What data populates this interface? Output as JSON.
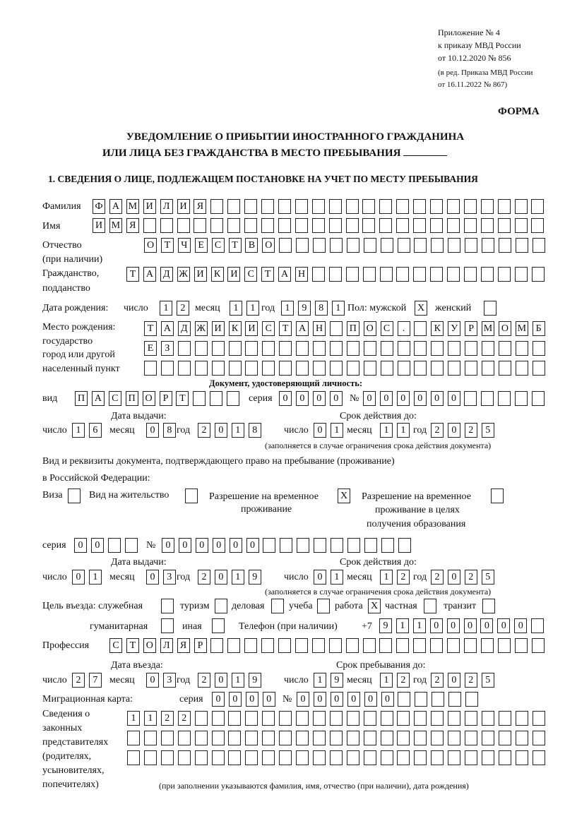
{
  "header": {
    "line1": "Приложение № 4",
    "line2": "к приказу МВД России",
    "line3": "от 10.12.2020 № 856",
    "line4": "(в ред. Приказа МВД России",
    "line5": "от 16.11.2022 № 867)",
    "forma": "ФОРМА",
    "title1": "УВЕДОМЛЕНИЕ О ПРИБЫТИИ ИНОСТРАННОГО ГРАЖДАНИНА",
    "title2": "ИЛИ ЛИЦА БЕЗ ГРАЖДАНСТВА В МЕСТО ПРЕБЫВАНИЯ"
  },
  "section1": {
    "heading": "1. СВЕДЕНИЯ О ЛИЦЕ, ПОДЛЕЖАЩЕМ ПОСТАНОВКЕ НА УЧЕТ ПО МЕСТУ ПРЕБЫВАНИЯ",
    "surname": {
      "label": "Фамилия",
      "value": "ФАМИЛИЯ"
    },
    "name": {
      "label": "Имя",
      "value": "ИМЯ"
    },
    "patronymic": {
      "label": "Отчество",
      "label2": "(при наличии)",
      "value": "ОТЧЕСТВО"
    },
    "citizenship": {
      "label": "Гражданство,",
      "label2": "подданство",
      "value": "ТАДЖИКИСТАН"
    },
    "birth_date": {
      "label": "Дата рождения:",
      "day_label": "число",
      "day": "12",
      "month_label": "месяц",
      "month": "11",
      "year_label": "год",
      "year": "1981"
    },
    "sex": {
      "label": "Пол: мужской",
      "male": "X",
      "female_label": "женский",
      "female": ""
    },
    "birth_place": {
      "label1": "Место рождения:",
      "label2": "государство",
      "label3": "город или другой",
      "label4": "населенный пункт",
      "row1": "ТАДЖИКИСТАН ПОС. КУРМОМБ",
      "row2": "ЕЗ",
      "row3": ""
    },
    "id_doc": {
      "heading": "Документ, удостоверяющий личность:",
      "type_label": "вид",
      "type": "ПАСПОРТ",
      "series_label": "серия",
      "series": "0000",
      "number_label": "№",
      "number": "000000",
      "issue_label": "Дата выдачи:",
      "valid_label": "Срок действия до:",
      "day_label": "число",
      "month_label": "месяц",
      "year_label": "год",
      "issue_day": "16",
      "issue_month": "08",
      "issue_year": "2018",
      "valid_day": "01",
      "valid_month": "11",
      "valid_year": "2025",
      "note": "(заполняется в случае ограничения срока действия документа)"
    },
    "right_doc": {
      "text1": "Вид и реквизиты документа, подтверждающего право на пребывание (проживание)",
      "text2": "в Российской Федерации:",
      "visa_label": "Виза",
      "visa": "",
      "residence_label": "Вид на жительство",
      "residence": "",
      "temp_label1": "Разрешение на временное",
      "temp_label2": "проживание",
      "temp": "X",
      "edu_label1": "Разрешение на временное",
      "edu_label2": "проживание в целях",
      "edu_label3": "получения образования",
      "edu": "",
      "series_label": "серия",
      "series": "00",
      "number_label": "№",
      "number": "000000",
      "issue_label": "Дата выдачи:",
      "valid_label": "Срок действия до:",
      "day_label": "число",
      "month_label": "месяц",
      "year_label": "год",
      "issue_day": "01",
      "issue_month": "03",
      "issue_year": "2019",
      "valid_day": "01",
      "valid_month": "12",
      "valid_year": "2025",
      "note": "(заполняется в случае ограничения срока действия документа)"
    },
    "purpose": {
      "label": "Цель въезда: служебная",
      "official": "",
      "tourism_label": "туризм",
      "tourism": "",
      "business_label": "деловая",
      "business": "",
      "study_label": "учеба",
      "study": "",
      "work_label": "работа",
      "work": "X",
      "private_label": "частная",
      "private": "",
      "transit_label": "транзит",
      "transit": "",
      "humanitarian_label": "гуманитарная",
      "humanitarian": "",
      "other_label": "иная",
      "other": ""
    },
    "phone": {
      "label": "Телефон (при наличии)",
      "prefix": "+7",
      "value": "911000000"
    },
    "profession": {
      "label": "Профессия",
      "value": "СТОЛЯР"
    },
    "entry": {
      "entry_label": "Дата въезда:",
      "stay_label": "Срок пребывания до:",
      "day_label": "число",
      "month_label": "месяц",
      "year_label": "год",
      "entry_day": "27",
      "entry_month": "03",
      "entry_year": "2019",
      "stay_day": "19",
      "stay_month": "12",
      "stay_year": "2025"
    },
    "migration_card": {
      "label": "Миграционная карта:",
      "series_label": "серия",
      "series": "0000",
      "number_label": "№",
      "number": "000000"
    },
    "representatives": {
      "label1": "Сведения о",
      "label2": "законных",
      "label3": "представителях",
      "label4": "(родителях,",
      "label5": "усыновителях,",
      "label6": "попечителях)",
      "row1": "1122",
      "row2": "",
      "row3": "",
      "note": "(при заполнении указываются фамилия, имя, отчество (при наличии), дата рождения)"
    }
  }
}
